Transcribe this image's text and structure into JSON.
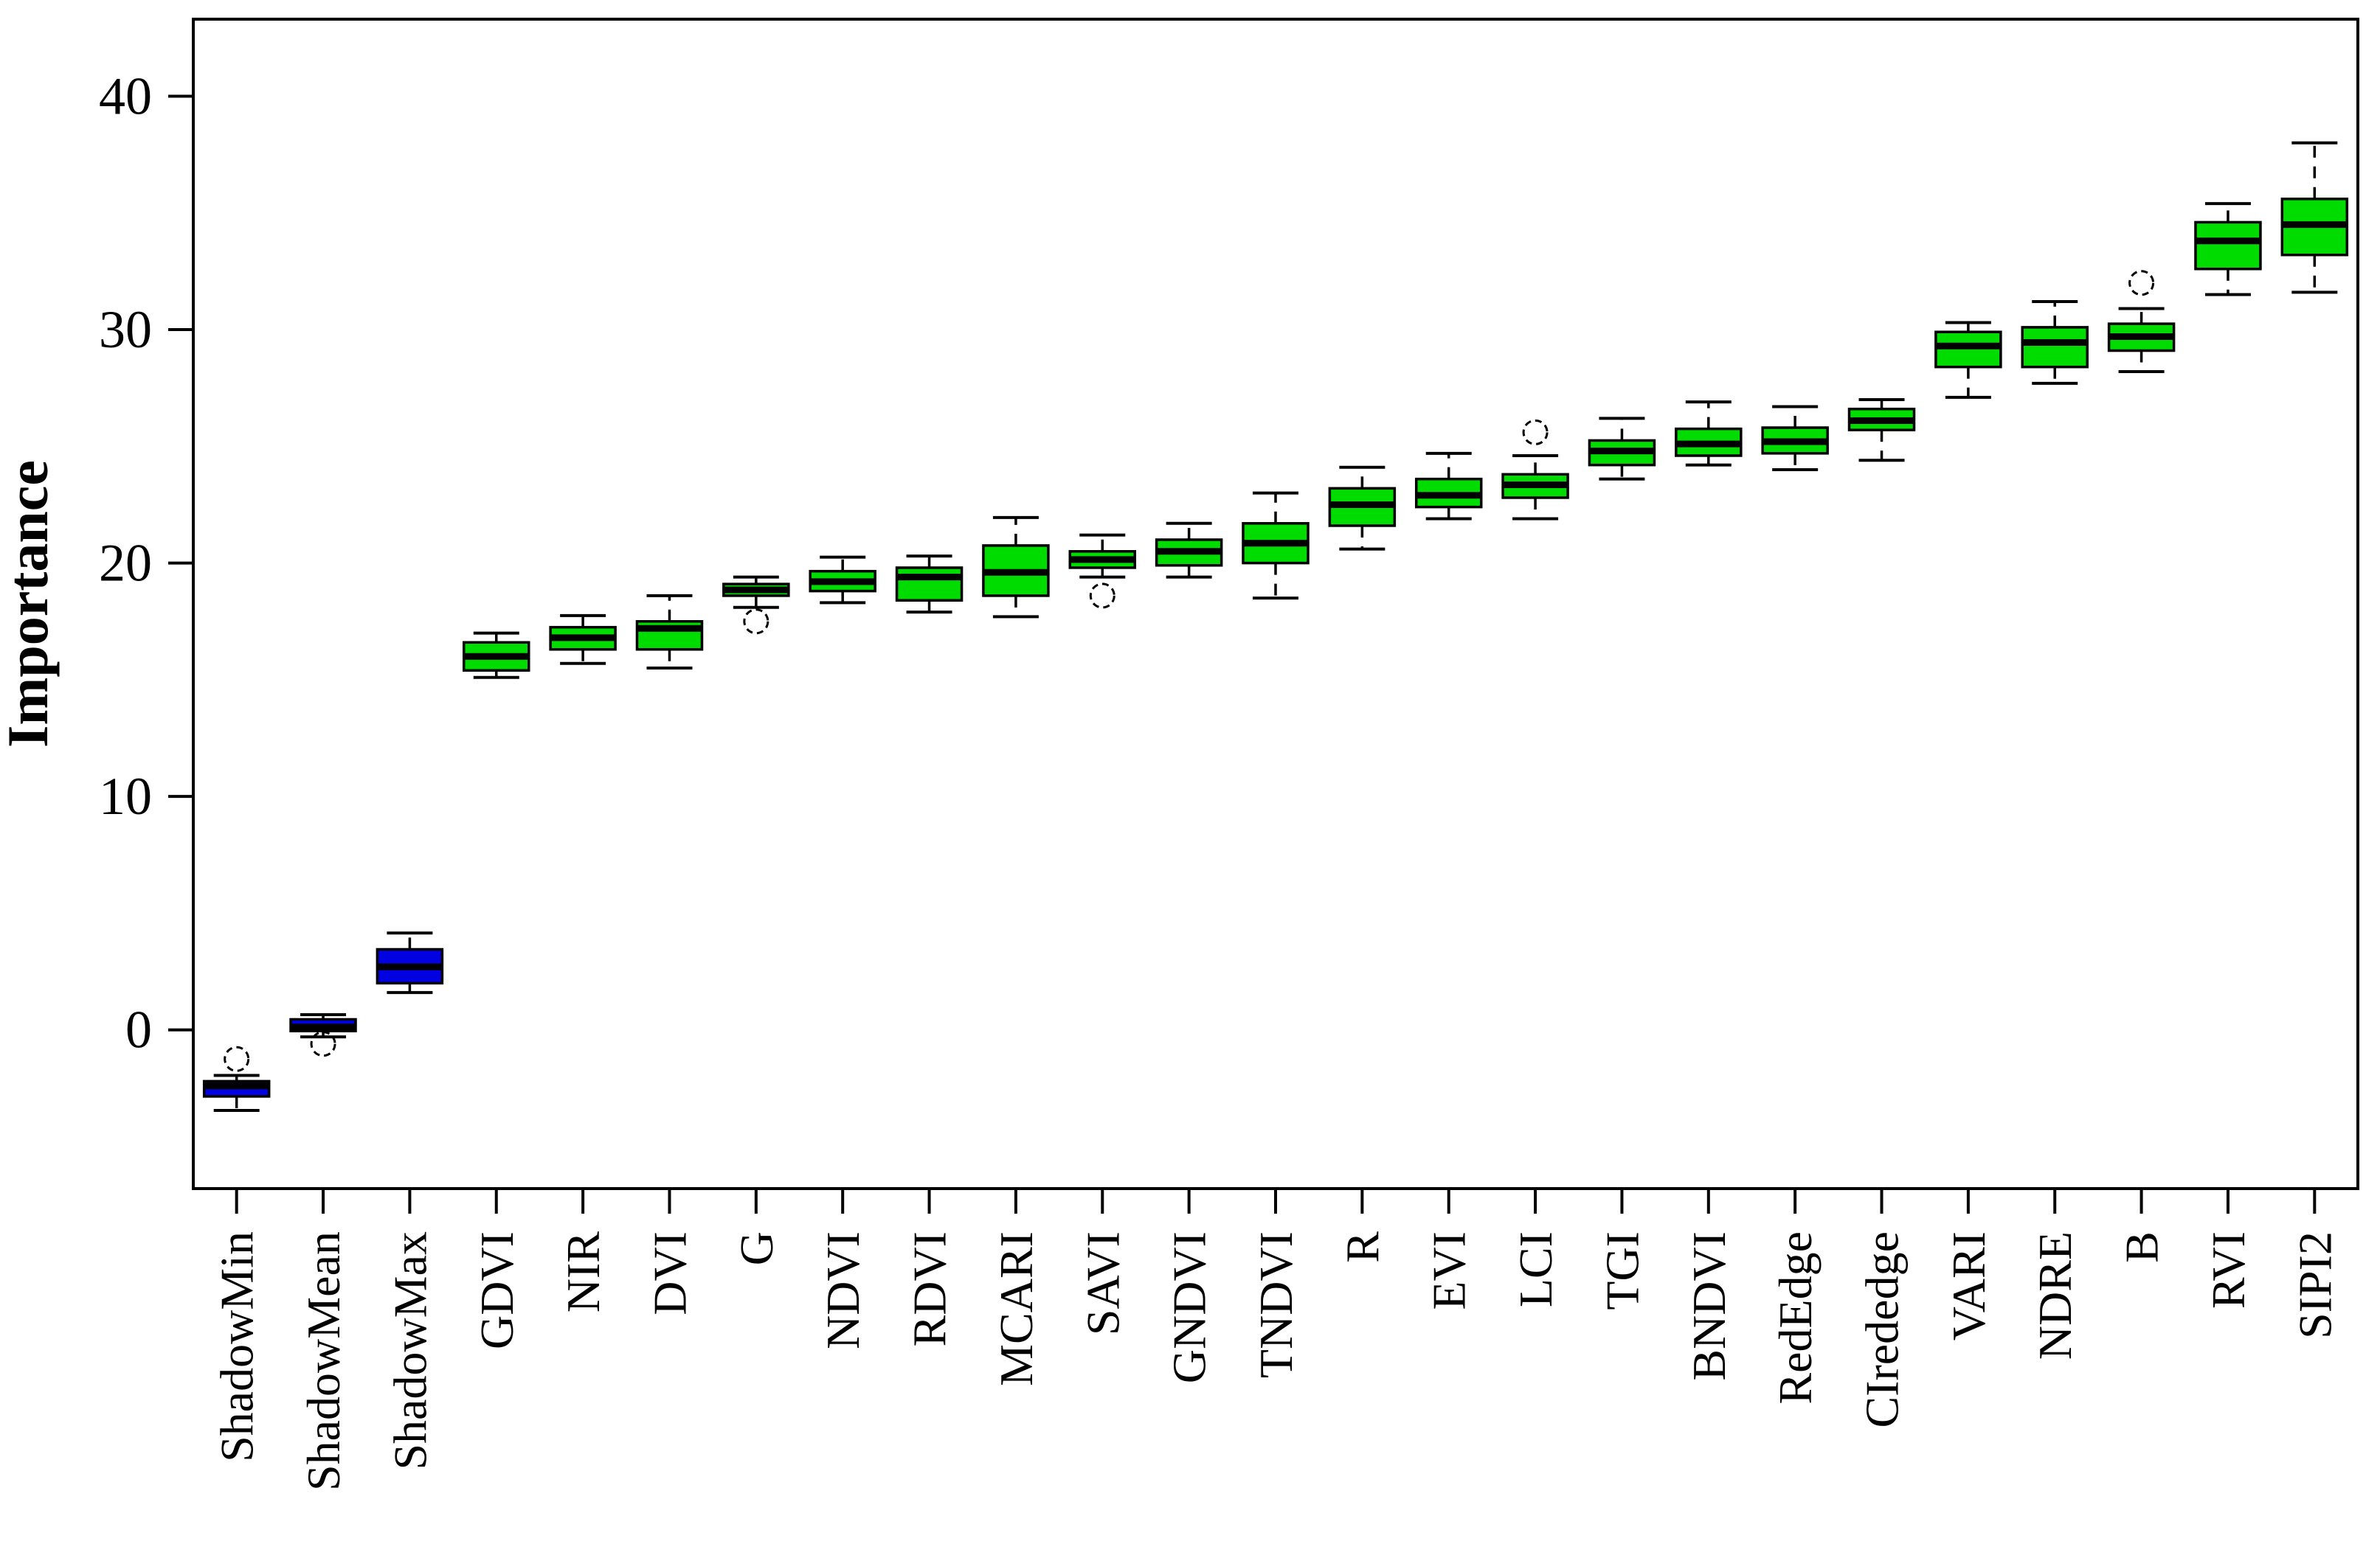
{
  "chart_data": {
    "type": "boxplot",
    "title": "",
    "xlabel": "",
    "ylabel": "Importance",
    "y_ticks": [
      0,
      10,
      20,
      30,
      40
    ],
    "ylim": [
      -6.8,
      43.3
    ],
    "grid": false,
    "legend": "none",
    "colors": {
      "shadow_fill": "#0202e0",
      "confirmed_fill": "#00dc00",
      "stroke": "#000000",
      "background": "#ffffff"
    },
    "boxes": [
      {
        "label": "ShadowMin",
        "group": "shadow",
        "whisker_low": -3.45,
        "q1": -2.85,
        "median": -2.4,
        "q3": -2.2,
        "whisker_high": -1.95,
        "outliers": [
          -1.25
        ]
      },
      {
        "label": "ShadowMean",
        "group": "shadow",
        "whisker_low": -0.3,
        "q1": -0.05,
        "median": 0.12,
        "q3": 0.45,
        "whisker_high": 0.65,
        "outliers": [
          -0.6
        ]
      },
      {
        "label": "ShadowMax",
        "group": "shadow",
        "whisker_low": 1.6,
        "q1": 2.0,
        "median": 2.7,
        "q3": 3.45,
        "whisker_high": 4.15,
        "outliers": []
      },
      {
        "label": "GDVI",
        "group": "confirmed",
        "whisker_low": 15.1,
        "q1": 15.4,
        "median": 16.0,
        "q3": 16.6,
        "whisker_high": 17.0,
        "outliers": []
      },
      {
        "label": "NIR",
        "group": "confirmed",
        "whisker_low": 15.7,
        "q1": 16.3,
        "median": 16.8,
        "q3": 17.25,
        "whisker_high": 17.75,
        "outliers": []
      },
      {
        "label": "DVI",
        "group": "confirmed",
        "whisker_low": 15.5,
        "q1": 16.3,
        "median": 17.2,
        "q3": 17.5,
        "whisker_high": 18.6,
        "outliers": []
      },
      {
        "label": "G",
        "group": "confirmed",
        "whisker_low": 18.1,
        "q1": 18.6,
        "median": 18.85,
        "q3": 19.1,
        "whisker_high": 19.4,
        "outliers": [
          17.5
        ]
      },
      {
        "label": "NDVI",
        "group": "confirmed",
        "whisker_low": 18.3,
        "q1": 18.8,
        "median": 19.2,
        "q3": 19.65,
        "whisker_high": 20.25,
        "outliers": []
      },
      {
        "label": "RDVI",
        "group": "confirmed",
        "whisker_low": 17.9,
        "q1": 18.4,
        "median": 19.4,
        "q3": 19.8,
        "whisker_high": 20.3,
        "outliers": []
      },
      {
        "label": "MCARI",
        "group": "confirmed",
        "whisker_low": 17.7,
        "q1": 18.6,
        "median": 19.6,
        "q3": 20.75,
        "whisker_high": 21.95,
        "outliers": []
      },
      {
        "label": "SAVI",
        "group": "confirmed",
        "whisker_low": 19.4,
        "q1": 19.8,
        "median": 20.15,
        "q3": 20.5,
        "whisker_high": 21.2,
        "outliers": [
          18.6
        ]
      },
      {
        "label": "GNDVI",
        "group": "confirmed",
        "whisker_low": 19.4,
        "q1": 19.9,
        "median": 20.5,
        "q3": 21.0,
        "whisker_high": 21.7,
        "outliers": []
      },
      {
        "label": "TNDVI",
        "group": "confirmed",
        "whisker_low": 18.5,
        "q1": 20.0,
        "median": 20.85,
        "q3": 21.7,
        "whisker_high": 23.0,
        "outliers": []
      },
      {
        "label": "R",
        "group": "confirmed",
        "whisker_low": 20.6,
        "q1": 21.6,
        "median": 22.5,
        "q3": 23.2,
        "whisker_high": 24.1,
        "outliers": []
      },
      {
        "label": "EVI",
        "group": "confirmed",
        "whisker_low": 21.9,
        "q1": 22.4,
        "median": 22.9,
        "q3": 23.6,
        "whisker_high": 24.7,
        "outliers": []
      },
      {
        "label": "LCI",
        "group": "confirmed",
        "whisker_low": 21.9,
        "q1": 22.8,
        "median": 23.35,
        "q3": 23.8,
        "whisker_high": 24.6,
        "outliers": [
          25.6
        ]
      },
      {
        "label": "TGI",
        "group": "confirmed",
        "whisker_low": 23.6,
        "q1": 24.2,
        "median": 24.8,
        "q3": 25.25,
        "whisker_high": 26.2,
        "outliers": []
      },
      {
        "label": "BNDVI",
        "group": "confirmed",
        "whisker_low": 24.2,
        "q1": 24.6,
        "median": 25.1,
        "q3": 25.75,
        "whisker_high": 26.9,
        "outliers": []
      },
      {
        "label": "RedEdge",
        "group": "confirmed",
        "whisker_low": 24.0,
        "q1": 24.7,
        "median": 25.2,
        "q3": 25.8,
        "whisker_high": 26.7,
        "outliers": []
      },
      {
        "label": "CIrededge",
        "group": "confirmed",
        "whisker_low": 24.4,
        "q1": 25.7,
        "median": 26.1,
        "q3": 26.6,
        "whisker_high": 27.0,
        "outliers": []
      },
      {
        "label": "VARI",
        "group": "confirmed",
        "whisker_low": 27.1,
        "q1": 28.4,
        "median": 29.3,
        "q3": 29.9,
        "whisker_high": 30.3,
        "outliers": []
      },
      {
        "label": "NDRE",
        "group": "confirmed",
        "whisker_low": 27.7,
        "q1": 28.4,
        "median": 29.45,
        "q3": 30.1,
        "whisker_high": 31.2,
        "outliers": []
      },
      {
        "label": "B",
        "group": "confirmed",
        "whisker_low": 28.2,
        "q1": 29.1,
        "median": 29.7,
        "q3": 30.25,
        "whisker_high": 30.9,
        "outliers": [
          32.0
        ]
      },
      {
        "label": "RVI",
        "group": "confirmed",
        "whisker_low": 31.5,
        "q1": 32.6,
        "median": 33.8,
        "q3": 34.6,
        "whisker_high": 35.4,
        "outliers": []
      },
      {
        "label": "SIPI2",
        "group": "confirmed",
        "whisker_low": 31.6,
        "q1": 33.2,
        "median": 34.5,
        "q3": 35.6,
        "whisker_high": 38.0,
        "outliers": []
      }
    ]
  }
}
